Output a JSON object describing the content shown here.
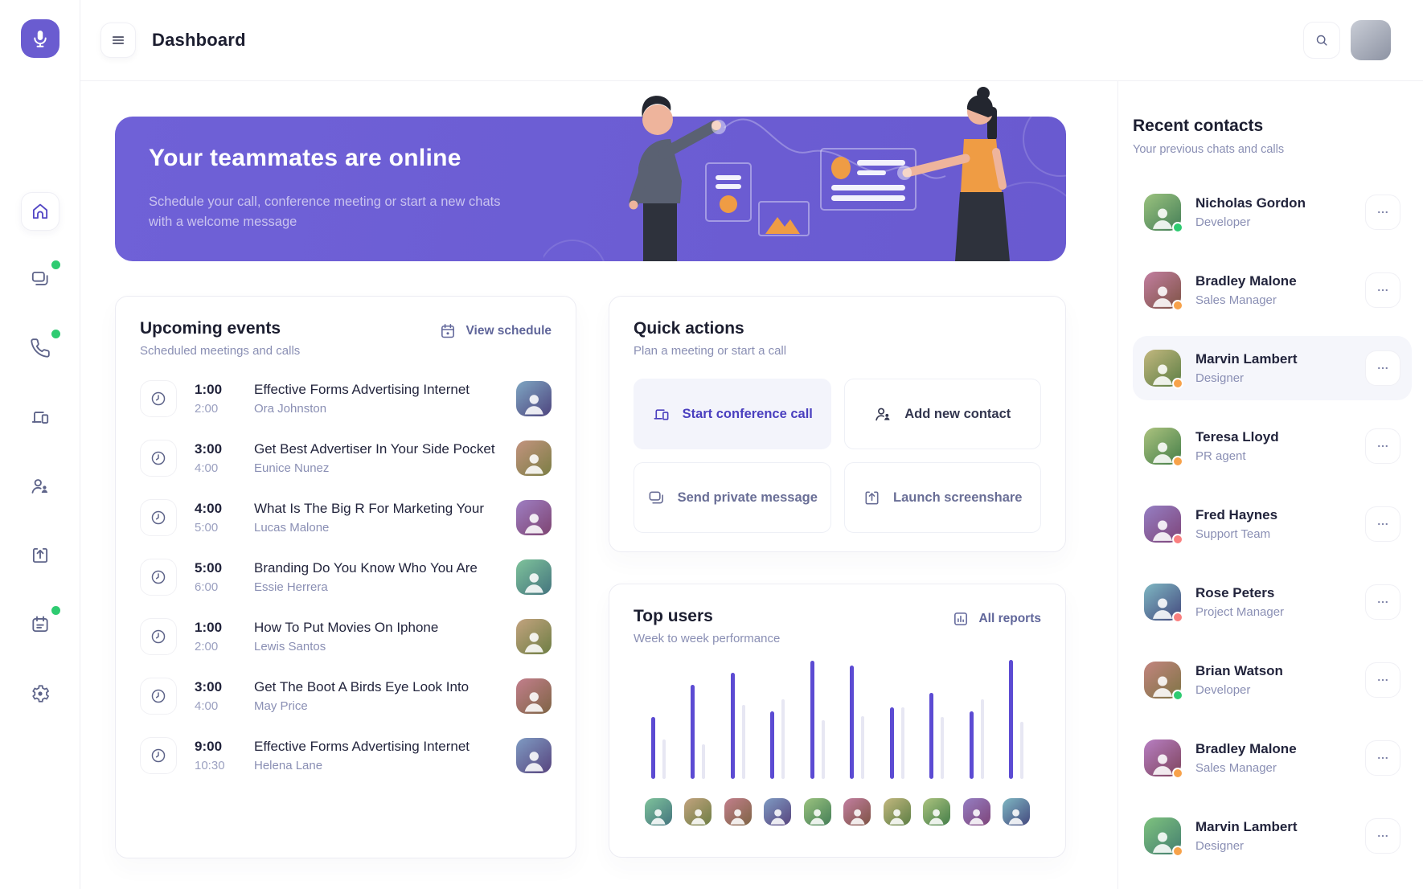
{
  "header": {
    "title": "Dashboard"
  },
  "sidebar": {
    "items": [
      {
        "name": "sidebar-item-home",
        "icon": "home-icon",
        "active": true,
        "badge": false
      },
      {
        "name": "sidebar-item-chats",
        "icon": "chat-icon",
        "active": false,
        "badge": true
      },
      {
        "name": "sidebar-item-calls",
        "icon": "phone-icon",
        "active": false,
        "badge": true
      },
      {
        "name": "sidebar-item-devices",
        "icon": "devices-icon",
        "active": false,
        "badge": false
      },
      {
        "name": "sidebar-item-contacts",
        "icon": "contacts-icon",
        "active": false,
        "badge": false
      },
      {
        "name": "sidebar-item-share",
        "icon": "share-icon",
        "active": false,
        "badge": false
      },
      {
        "name": "sidebar-item-calendar",
        "icon": "calendar-icon",
        "active": false,
        "badge": true
      },
      {
        "name": "sidebar-item-settings",
        "icon": "settings-icon",
        "active": false,
        "badge": false
      }
    ]
  },
  "banner": {
    "title": "Your teammates are online",
    "subtitle": "Schedule your call, conference meeting or start a new chats with a welcome message"
  },
  "events": {
    "title": "Upcoming events",
    "subtitle": "Scheduled meetings and calls",
    "link_label": "View schedule",
    "items": [
      {
        "start": "1:00",
        "end": "2:00",
        "title": "Effective Forms Advertising Internet",
        "person": "Ora Johnston"
      },
      {
        "start": "3:00",
        "end": "4:00",
        "title": "Get Best Advertiser In Your Side Pocket",
        "person": "Eunice Nunez"
      },
      {
        "start": "4:00",
        "end": "5:00",
        "title": "What Is The Big R For Marketing Your",
        "person": "Lucas Malone"
      },
      {
        "start": "5:00",
        "end": "6:00",
        "title": "Branding Do You Know Who You Are",
        "person": "Essie Herrera"
      },
      {
        "start": "1:00",
        "end": "2:00",
        "title": "How To Put Movies On Iphone",
        "person": "Lewis Santos"
      },
      {
        "start": "3:00",
        "end": "4:00",
        "title": "Get The Boot A Birds Eye Look Into",
        "person": "May Price"
      },
      {
        "start": "9:00",
        "end": "10:30",
        "title": "Effective Forms Advertising Internet",
        "person": "Helena Lane"
      }
    ]
  },
  "quick_actions": {
    "title": "Quick actions",
    "subtitle": "Plan a meeting or start a call",
    "buttons": [
      {
        "name": "start-conference-call-button",
        "label": "Start conference call",
        "icon": "conference-icon",
        "primary": true,
        "dark": false
      },
      {
        "name": "add-new-contact-button",
        "label": "Add new contact",
        "icon": "person-add-icon",
        "primary": false,
        "dark": true
      },
      {
        "name": "send-private-message-button",
        "label": "Send private message",
        "icon": "message-icon",
        "primary": false,
        "dark": false
      },
      {
        "name": "launch-screenshare-button",
        "label": "Launch screenshare",
        "icon": "screenshare-icon",
        "primary": false,
        "dark": false
      }
    ]
  },
  "top_users": {
    "title": "Top users",
    "subtitle": "Week to week performance",
    "link_label": "All reports"
  },
  "chart_data": {
    "type": "bar",
    "title": "Top users",
    "subtitle": "Week to week performance",
    "categories": [
      "user-1",
      "user-2",
      "user-3",
      "user-4",
      "user-5",
      "user-6",
      "user-7",
      "user-8",
      "user-9",
      "user-10"
    ],
    "series": [
      {
        "name": "current-week",
        "color": "#5c4bd3",
        "values": [
          52,
          79,
          89,
          57,
          99,
          95,
          60,
          72,
          57,
          100
        ]
      },
      {
        "name": "previous-week",
        "color": "#e7e7f3",
        "values": [
          33,
          29,
          62,
          67,
          49,
          53,
          60,
          52,
          67,
          48
        ]
      }
    ],
    "ylim": [
      0,
      100
    ],
    "grid": false,
    "legend": false,
    "xlabel": "",
    "ylabel": ""
  },
  "contacts": {
    "title": "Recent contacts",
    "subtitle": "Your previous chats and calls",
    "items": [
      {
        "name": "Nicholas Gordon",
        "role": "Developer",
        "status_color": "#2ecb71",
        "selected": false
      },
      {
        "name": "Bradley Malone",
        "role": "Sales Manager",
        "status_color": "#f7a24a",
        "selected": false
      },
      {
        "name": "Marvin Lambert",
        "role": "Designer",
        "status_color": "#f7a24a",
        "selected": true
      },
      {
        "name": "Teresa Lloyd",
        "role": "PR agent",
        "status_color": "#f7a24a",
        "selected": false
      },
      {
        "name": "Fred Haynes",
        "role": "Support Team",
        "status_color": "#fa7f7f",
        "selected": false
      },
      {
        "name": "Rose Peters",
        "role": "Project Manager",
        "status_color": "#fa7f7f",
        "selected": false
      },
      {
        "name": "Brian Watson",
        "role": "Developer",
        "status_color": "#2ecb71",
        "selected": false
      },
      {
        "name": "Bradley Malone",
        "role": "Sales Manager",
        "status_color": "#f7a24a",
        "selected": false
      },
      {
        "name": "Marvin Lambert",
        "role": "Designer",
        "status_color": "#f7a24a",
        "selected": false
      }
    ]
  },
  "colors": {
    "accent": "#6a5cd0",
    "banner": "#6c5ed4",
    "bar_current": "#5c4bd3",
    "bar_previous": "#e7e7f3",
    "online_green": "#2ecb71",
    "away_orange": "#f7a24a",
    "busy_salmon": "#fa7f7f"
  }
}
